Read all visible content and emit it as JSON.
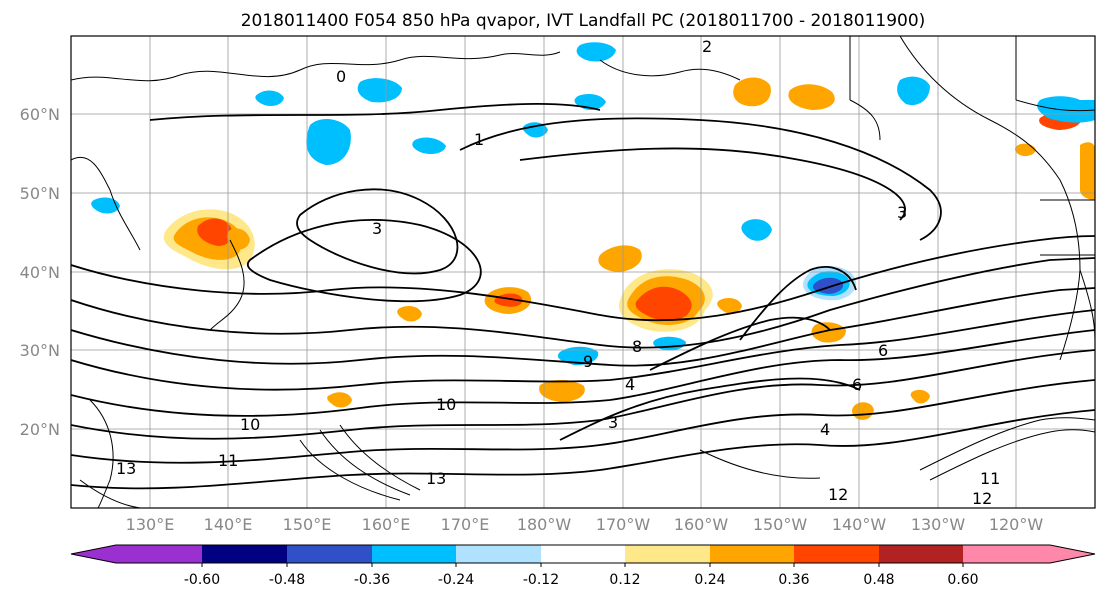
{
  "title": "2018011400 F054 850 hPa qvapor, IVT Landfall PC (2018011700 - 2018011900)",
  "map": {
    "lat_labels": [
      "60°N",
      "50°N",
      "40°N",
      "30°N",
      "20°N"
    ],
    "lon_labels": [
      "130°E",
      "140°E",
      "150°E",
      "160°E",
      "170°E",
      "180°W",
      "170°W",
      "160°W",
      "150°W",
      "140°W",
      "130°W",
      "120°W"
    ],
    "colors": {
      "contour": "#000000",
      "grid": "#999999",
      "land_boundary": "#000000"
    }
  },
  "contour_labels": [
    "0",
    "1",
    "2",
    "3",
    "4",
    "6",
    "8",
    "9",
    "10",
    "11",
    "12",
    "13"
  ],
  "colorbar": {
    "tick_labels": [
      "-0.60",
      "-0.48",
      "-0.36",
      "-0.24",
      "-0.12",
      "0.12",
      "0.24",
      "0.36",
      "0.48",
      "0.60"
    ],
    "colors": [
      "#9b30d0",
      "#000080",
      "#3050c8",
      "#00bfff",
      "#b0e2ff",
      "#ffffff",
      "#ffe88a",
      "#ffa500",
      "#ff4500",
      "#b22222",
      "#ff88aa"
    ]
  }
}
